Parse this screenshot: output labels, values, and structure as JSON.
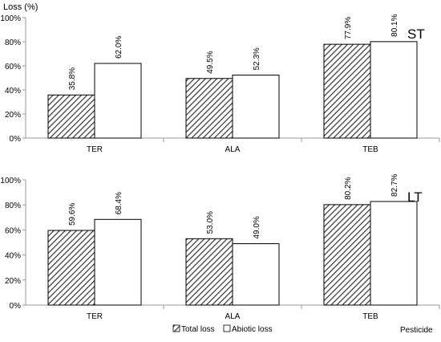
{
  "figure": {
    "ylabel": "Loss (%)",
    "xlabel": "Pesticide",
    "legend": [
      {
        "label": "Total loss",
        "pattern": "hatch"
      },
      {
        "label": "Abiotic loss",
        "pattern": "plain"
      }
    ]
  },
  "chart_data": [
    {
      "type": "bar",
      "panel_label": "ST",
      "categories": [
        "TER",
        "ALA",
        "TEB"
      ],
      "series": [
        {
          "name": "Total loss",
          "values": [
            35.8,
            49.5,
            77.9
          ]
        },
        {
          "name": "Abiotic loss",
          "values": [
            62.0,
            52.3,
            80.1
          ]
        }
      ],
      "data_labels": [
        [
          "35.8%",
          "49.5%",
          "77.9%"
        ],
        [
          "62.0%",
          "52.3%",
          "80.1%"
        ]
      ],
      "ylim": [
        0,
        100
      ],
      "yticks": [
        "0%",
        "20%",
        "40%",
        "60%",
        "80%",
        "100%"
      ],
      "grid": false,
      "legend": "bottom"
    },
    {
      "type": "bar",
      "panel_label": "LT",
      "categories": [
        "TER",
        "ALA",
        "TEB"
      ],
      "series": [
        {
          "name": "Total loss",
          "values": [
            59.6,
            53.0,
            80.2
          ]
        },
        {
          "name": "Abiotic loss",
          "values": [
            68.4,
            49.0,
            82.7
          ]
        }
      ],
      "data_labels": [
        [
          "59.6%",
          "53.0%",
          "80.2%"
        ],
        [
          "68.4%",
          "49.0%",
          "82.7%"
        ]
      ],
      "ylim": [
        0,
        100
      ],
      "yticks": [
        "0%",
        "20%",
        "40%",
        "60%",
        "80%",
        "100%"
      ],
      "grid": false,
      "legend": "bottom"
    }
  ]
}
